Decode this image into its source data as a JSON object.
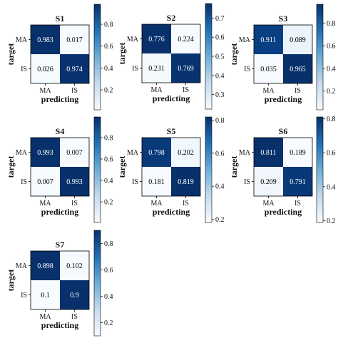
{
  "chart_data": [
    {
      "type": "heatmap",
      "title": "S1",
      "xlabel": "predicting",
      "ylabel": "target",
      "x_tick_labels": [
        "MA",
        "IS"
      ],
      "y_tick_labels": [
        "MA",
        "IS"
      ],
      "values": [
        [
          "0.983",
          "0.017"
        ],
        [
          "0.026",
          "0.974"
        ]
      ],
      "colorbar": {
        "ticks": [
          "0.2",
          "0.4",
          "0.6",
          "0.8"
        ],
        "range": [
          0.017,
          0.983
        ]
      }
    },
    {
      "type": "heatmap",
      "title": "S2",
      "xlabel": "predicting",
      "ylabel": "target",
      "x_tick_labels": [
        "MA",
        "IS"
      ],
      "y_tick_labels": [
        "MA",
        "IS"
      ],
      "values": [
        [
          "0.776",
          "0.224"
        ],
        [
          "0.231",
          "0.769"
        ]
      ],
      "colorbar": {
        "ticks": [
          "0.3",
          "0.4",
          "0.5",
          "0.6",
          "0.7"
        ],
        "range": [
          0.224,
          0.776
        ]
      }
    },
    {
      "type": "heatmap",
      "title": "S3",
      "xlabel": "predicting",
      "ylabel": "target",
      "x_tick_labels": [
        "MA",
        "IS"
      ],
      "y_tick_labels": [
        "MA",
        "IS"
      ],
      "values": [
        [
          "0.911",
          "0.089"
        ],
        [
          "0.035",
          "0.965"
        ]
      ],
      "colorbar": {
        "ticks": [
          "0.2",
          "0.4",
          "0.6",
          "0.8"
        ],
        "range": [
          0.035,
          0.965
        ]
      }
    },
    {
      "type": "heatmap",
      "title": "S4",
      "xlabel": "predicting",
      "ylabel": "target",
      "x_tick_labels": [
        "MA",
        "IS"
      ],
      "y_tick_labels": [
        "MA",
        "IS"
      ],
      "values": [
        [
          "0.993",
          "0.007"
        ],
        [
          "0.007",
          "0.993"
        ]
      ],
      "colorbar": {
        "ticks": [
          "0.2",
          "0.4",
          "0.6",
          "0.8"
        ],
        "range": [
          0.007,
          0.993
        ]
      }
    },
    {
      "type": "heatmap",
      "title": "S5",
      "xlabel": "predicting",
      "ylabel": "target",
      "x_tick_labels": [
        "MA",
        "IS"
      ],
      "y_tick_labels": [
        "MA",
        "IS"
      ],
      "values": [
        [
          "0.798",
          "0.202"
        ],
        [
          "0.181",
          "0.819"
        ]
      ],
      "colorbar": {
        "ticks": [
          "0.2",
          "0.4",
          "0.6",
          "0.8"
        ],
        "range": [
          0.181,
          0.819
        ]
      }
    },
    {
      "type": "heatmap",
      "title": "S6",
      "xlabel": "predicting",
      "ylabel": "target",
      "x_tick_labels": [
        "MA",
        "IS"
      ],
      "y_tick_labels": [
        "MA",
        "IS"
      ],
      "values": [
        [
          "0.811",
          "0.189"
        ],
        [
          "0.209",
          "0.791"
        ]
      ],
      "colorbar": {
        "ticks": [
          "0.2",
          "0.4",
          "0.6",
          "0.8"
        ],
        "range": [
          0.189,
          0.811
        ]
      }
    },
    {
      "type": "heatmap",
      "title": "S7",
      "xlabel": "predicting",
      "ylabel": "target",
      "x_tick_labels": [
        "MA",
        "IS"
      ],
      "y_tick_labels": [
        "MA",
        "IS"
      ],
      "values": [
        [
          "0.898",
          "0.102"
        ],
        [
          "0.1",
          "0.9"
        ]
      ],
      "colorbar": {
        "ticks": [
          "0.2",
          "0.4",
          "0.6",
          "0.8"
        ],
        "range": [
          0.1,
          0.9
        ]
      }
    }
  ]
}
